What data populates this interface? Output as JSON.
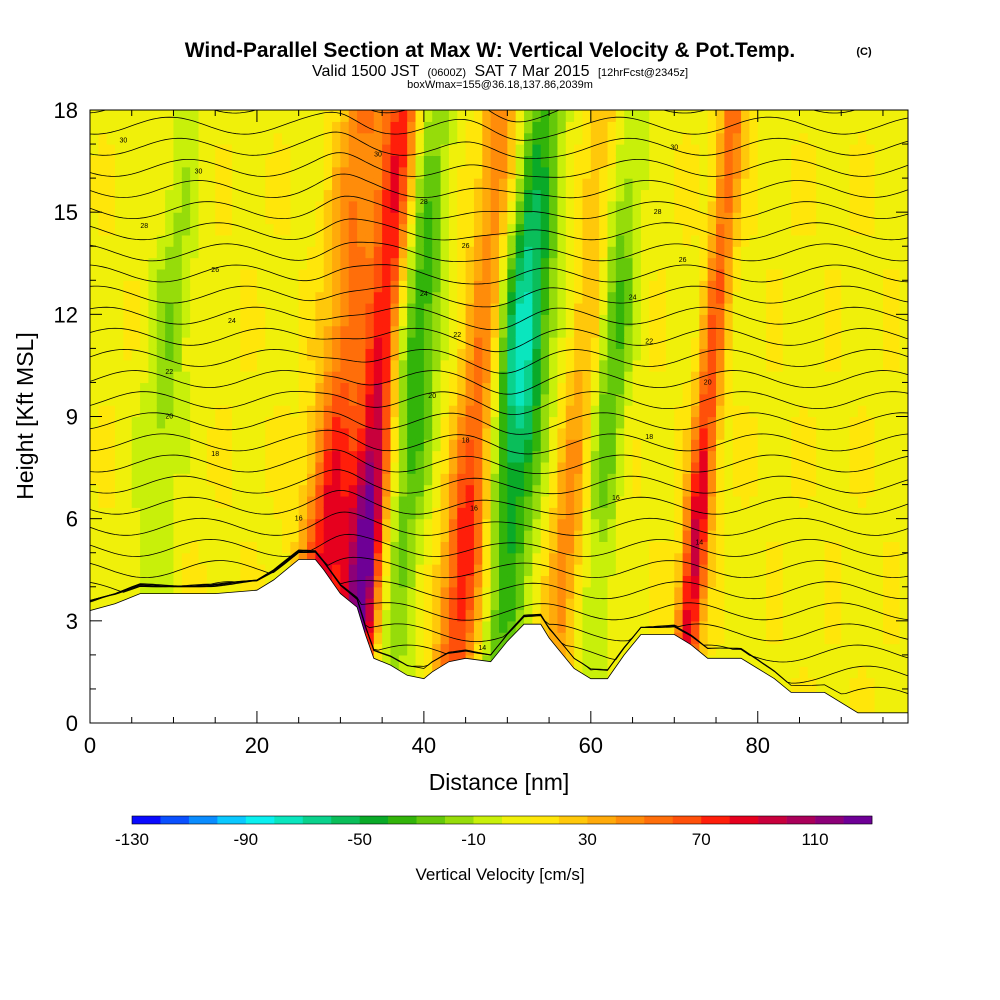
{
  "chart_data": {
    "type": "heatmap",
    "title": "Wind-Parallel Section at Max W: Vertical Velocity & Pot.Temp.",
    "title_mark": "(C)",
    "subtitle": {
      "valid": "Valid 1500 JST",
      "utc": "(0600Z)",
      "date": "SAT 7 Mar 2015",
      "fcst": "[12hrFcst@2345z]",
      "box": "boxWmax=155@36.18,137.86,2039m"
    },
    "xlabel": "Distance [nm]",
    "ylabel": "Height [Kft MSL]",
    "xlim": [
      0,
      98
    ],
    "ylim": [
      0,
      18
    ],
    "x_ticks": [
      0,
      20,
      40,
      60,
      80
    ],
    "y_ticks": [
      0,
      3,
      6,
      9,
      12,
      15,
      18
    ],
    "x_ticklabels": [
      "0",
      "20",
      "40",
      "60",
      "80"
    ],
    "y_ticklabels": [
      "0",
      "3",
      "6",
      "9",
      "12",
      "15",
      "18"
    ],
    "colorbar": {
      "label": "Vertical Velocity [cm/s]",
      "min": -130,
      "max": 130,
      "step": 10,
      "tick_values": [
        -130,
        -90,
        -50,
        -10,
        30,
        70,
        110
      ],
      "tick_labels": [
        "-130",
        "-90",
        "-50",
        "-10",
        "30",
        "70",
        "110"
      ],
      "colors": [
        "#0a0aff",
        "#0a50ff",
        "#0a8cff",
        "#0ac8ff",
        "#0af0f0",
        "#0ae6be",
        "#0ad28c",
        "#0abe5a",
        "#0aaa28",
        "#32b40a",
        "#64c80a",
        "#96dc0a",
        "#c8f00a",
        "#f0f00a",
        "#ffe60a",
        "#ffc80a",
        "#ffaa0a",
        "#ff8c0a",
        "#ff6e0a",
        "#ff500a",
        "#ff1e0a",
        "#e6001e",
        "#c8003c",
        "#aa005a",
        "#8c0078",
        "#6e0096"
      ]
    },
    "updraft_bands": [
      {
        "x": 28.5,
        "w": 3.0,
        "peak": 80
      },
      {
        "x": 33,
        "w": 2.0,
        "peak": 120
      },
      {
        "x": 45,
        "w": 2.5,
        "peak": 75
      },
      {
        "x": 57,
        "w": 2.0,
        "peak": 40
      },
      {
        "x": 72.5,
        "w": 1.5,
        "peak": 90
      }
    ],
    "downdraft_bands": [
      {
        "x": 37.5,
        "w": 2.5,
        "peak": -50
      },
      {
        "x": 50,
        "w": 3.0,
        "peak": -85
      },
      {
        "x": 61,
        "w": 2.0,
        "peak": -40
      },
      {
        "x": 7.5,
        "w": 2.5,
        "peak": -25
      }
    ],
    "terrain_top_kft": [
      [
        0,
        3.3
      ],
      [
        3,
        3.5
      ],
      [
        6,
        3.8
      ],
      [
        10,
        3.8
      ],
      [
        15,
        3.8
      ],
      [
        20,
        3.9
      ],
      [
        22,
        4.2
      ],
      [
        24,
        4.6
      ],
      [
        25,
        4.8
      ],
      [
        27,
        4.8
      ],
      [
        28,
        4.5
      ],
      [
        30,
        3.8
      ],
      [
        32,
        3.4
      ],
      [
        33,
        2.6
      ],
      [
        34,
        1.9
      ],
      [
        36,
        1.7
      ],
      [
        38,
        1.4
      ],
      [
        40,
        1.3
      ],
      [
        41,
        1.5
      ],
      [
        43,
        1.8
      ],
      [
        45,
        1.9
      ],
      [
        48,
        1.8
      ],
      [
        50,
        2.4
      ],
      [
        52,
        2.9
      ],
      [
        54,
        2.9
      ],
      [
        55,
        2.5
      ],
      [
        56,
        2.2
      ],
      [
        58,
        1.6
      ],
      [
        60,
        1.3
      ],
      [
        62,
        1.3
      ],
      [
        64,
        2.0
      ],
      [
        66,
        2.6
      ],
      [
        68,
        2.6
      ],
      [
        70,
        2.6
      ],
      [
        72,
        2.3
      ],
      [
        74,
        1.9
      ],
      [
        78,
        1.9
      ],
      [
        80,
        1.6
      ],
      [
        82,
        1.3
      ],
      [
        84,
        0.9
      ],
      [
        88,
        0.9
      ],
      [
        92,
        0.3
      ],
      [
        98,
        0.3
      ]
    ],
    "contour_labels": [
      {
        "x": 4,
        "y": 17.1,
        "text": "30"
      },
      {
        "x": 13,
        "y": 16.2,
        "text": "30"
      },
      {
        "x": 6.5,
        "y": 14.6,
        "text": "28"
      },
      {
        "x": 15,
        "y": 13.3,
        "text": "26"
      },
      {
        "x": 17,
        "y": 11.8,
        "text": "24"
      },
      {
        "x": 9.5,
        "y": 10.3,
        "text": "22"
      },
      {
        "x": 9.5,
        "y": 9.0,
        "text": "20"
      },
      {
        "x": 15,
        "y": 7.9,
        "text": "18"
      },
      {
        "x": 25,
        "y": 6.0,
        "text": "16"
      },
      {
        "x": 34.5,
        "y": 16.7,
        "text": "30"
      },
      {
        "x": 40,
        "y": 15.3,
        "text": "28"
      },
      {
        "x": 45,
        "y": 14.0,
        "text": "26"
      },
      {
        "x": 40,
        "y": 12.6,
        "text": "24"
      },
      {
        "x": 44,
        "y": 11.4,
        "text": "22"
      },
      {
        "x": 41,
        "y": 9.6,
        "text": "20"
      },
      {
        "x": 45,
        "y": 8.3,
        "text": "18"
      },
      {
        "x": 46,
        "y": 6.3,
        "text": "16"
      },
      {
        "x": 70,
        "y": 16.9,
        "text": "30"
      },
      {
        "x": 68,
        "y": 15.0,
        "text": "28"
      },
      {
        "x": 71,
        "y": 13.6,
        "text": "26"
      },
      {
        "x": 65,
        "y": 12.5,
        "text": "24"
      },
      {
        "x": 67,
        "y": 11.2,
        "text": "22"
      },
      {
        "x": 74,
        "y": 10.0,
        "text": "20"
      },
      {
        "x": 67,
        "y": 8.4,
        "text": "18"
      },
      {
        "x": 63,
        "y": 6.6,
        "text": "16"
      },
      {
        "x": 73,
        "y": 5.3,
        "text": "14"
      },
      {
        "x": 47,
        "y": 2.2,
        "text": "14"
      }
    ]
  }
}
